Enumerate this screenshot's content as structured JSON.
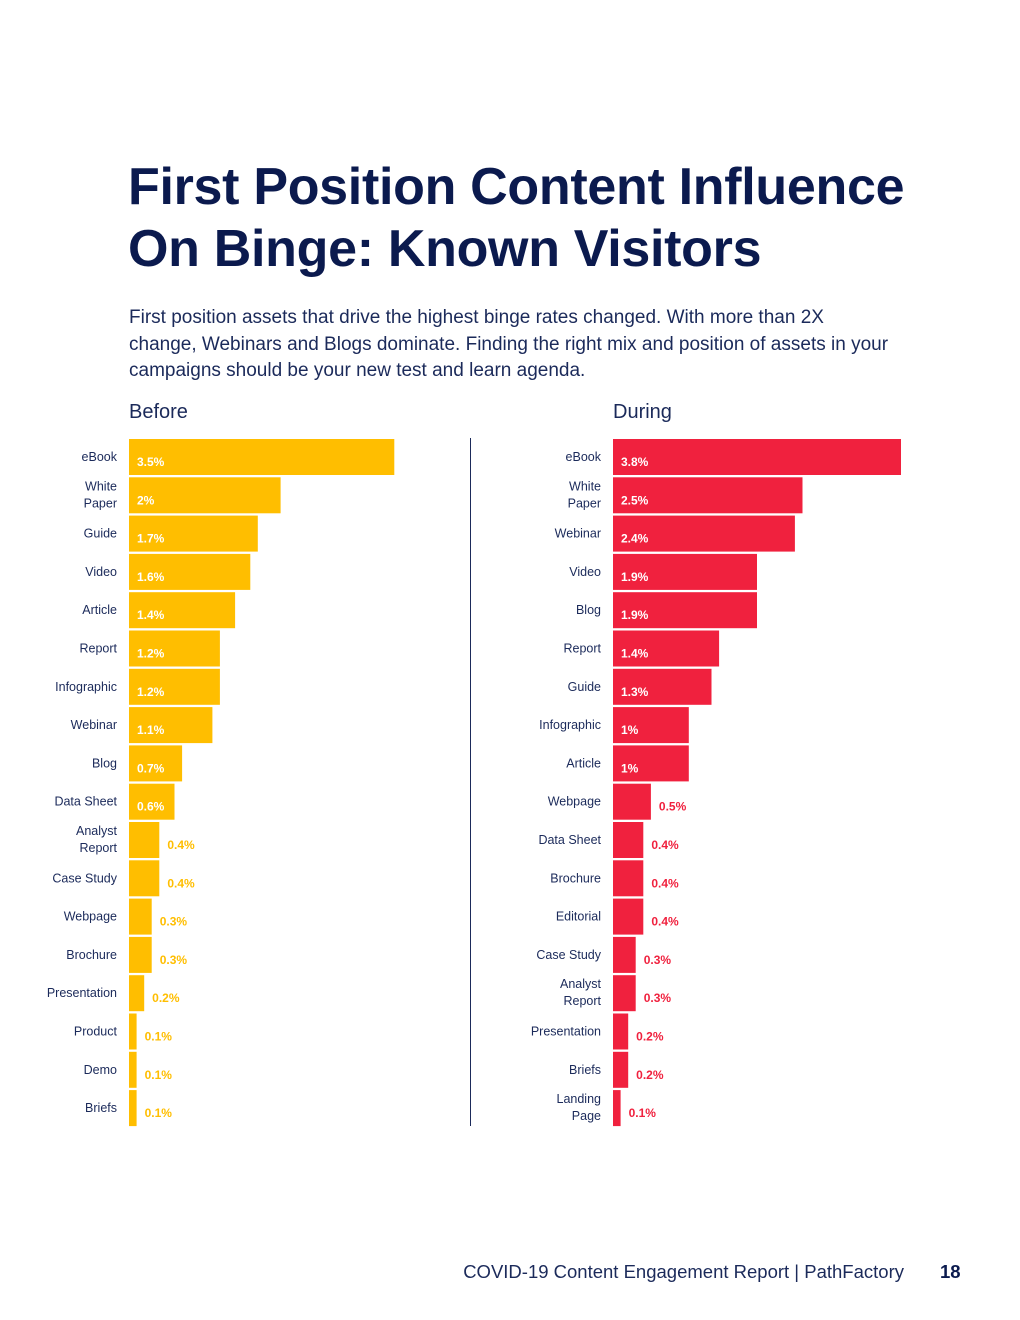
{
  "page": {
    "title_line1": "First Position Content Influence",
    "title_line2": "On Binge: Known Visitors",
    "intro": "First position assets that drive the highest binge rates changed. With more than 2X change, Webinars and Blogs dominate. Finding the right mix and position of assets in your campaigns should be your new test and learn agenda.",
    "footer_text": "COVID-19 Content Engagement Report  |  PathFactory",
    "page_number": "18"
  },
  "colors": {
    "before": "#FFBE00",
    "during": "#F0213E",
    "text": "#1b2a5a"
  },
  "chart_data": [
    {
      "type": "bar",
      "orientation": "horizontal",
      "title": "Before",
      "unit": "%",
      "categories": [
        "eBook",
        "White Paper",
        "Guide",
        "Video",
        "Article",
        "Report",
        "Infographic",
        "Webinar",
        "Blog",
        "Data Sheet",
        "Analyst Report",
        "Case Study",
        "Webpage",
        "Brochure",
        "Presentation",
        "Product",
        "Demo",
        "Briefs"
      ],
      "category_lines": [
        [
          "eBook"
        ],
        [
          "White",
          "Paper"
        ],
        [
          "Guide"
        ],
        [
          "Video"
        ],
        [
          "Article"
        ],
        [
          "Report"
        ],
        [
          "Infographic"
        ],
        [
          "Webinar"
        ],
        [
          "Blog"
        ],
        [
          "Data Sheet"
        ],
        [
          "Analyst",
          "Report"
        ],
        [
          "Case Study"
        ],
        [
          "Webpage"
        ],
        [
          "Brochure"
        ],
        [
          "Presentation"
        ],
        [
          "Product"
        ],
        [
          "Demo"
        ],
        [
          "Briefs"
        ]
      ],
      "values": [
        3.5,
        2,
        1.7,
        1.6,
        1.4,
        1.2,
        1.2,
        1.1,
        0.7,
        0.6,
        0.4,
        0.4,
        0.3,
        0.3,
        0.2,
        0.1,
        0.1,
        0.1
      ],
      "labels": [
        "3.5%",
        "2%",
        "1.7%",
        "1.6%",
        "1.4%",
        "1.2%",
        "1.2%",
        "1.1%",
        "0.7%",
        "0.6%",
        "0.4%",
        "0.4%",
        "0.3%",
        "0.3%",
        "0.2%",
        "0.1%",
        "0.1%",
        "0.1%"
      ],
      "xlim": [
        0,
        3.8
      ]
    },
    {
      "type": "bar",
      "orientation": "horizontal",
      "title": "During",
      "unit": "%",
      "categories": [
        "eBook",
        "White Paper",
        "Webinar",
        "Video",
        "Blog",
        "Report",
        "Guide",
        "Infographic",
        "Article",
        "Webpage",
        "Data Sheet",
        "Brochure",
        "Editorial",
        "Case Study",
        "Analyst Report",
        "Presentation",
        "Briefs",
        "Landing Page"
      ],
      "category_lines": [
        [
          "eBook"
        ],
        [
          "White",
          "Paper"
        ],
        [
          "Webinar"
        ],
        [
          "Video"
        ],
        [
          "Blog"
        ],
        [
          "Report"
        ],
        [
          "Guide"
        ],
        [
          "Infographic"
        ],
        [
          "Article"
        ],
        [
          "Webpage"
        ],
        [
          "Data Sheet"
        ],
        [
          "Brochure"
        ],
        [
          "Editorial"
        ],
        [
          "Case Study"
        ],
        [
          "Analyst",
          "Report"
        ],
        [
          "Presentation"
        ],
        [
          "Briefs"
        ],
        [
          "Landing",
          "Page"
        ]
      ],
      "values": [
        3.8,
        2.5,
        2.4,
        1.9,
        1.9,
        1.4,
        1.3,
        1,
        1,
        0.5,
        0.4,
        0.4,
        0.4,
        0.3,
        0.3,
        0.2,
        0.2,
        0.1
      ],
      "labels": [
        "3.8%",
        "2.5%",
        "2.4%",
        "1.9%",
        "1.9%",
        "1.4%",
        "1.3%",
        "1%",
        "1%",
        "0.5%",
        "0.4%",
        "0.4%",
        "0.4%",
        "0.3%",
        "0.3%",
        "0.2%",
        "0.2%",
        "0.1%"
      ],
      "xlim": [
        0,
        3.8
      ]
    }
  ]
}
